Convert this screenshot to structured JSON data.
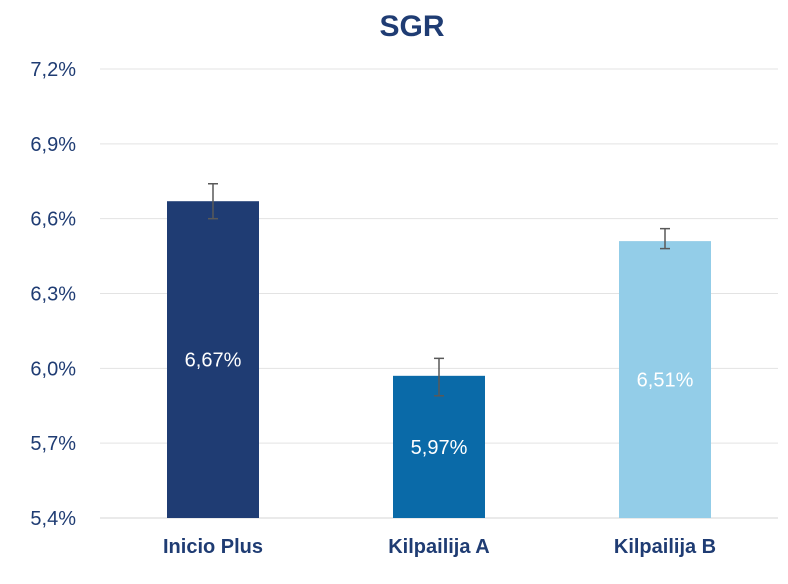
{
  "chart_data": {
    "type": "bar",
    "title": "SGR",
    "xlabel": "",
    "ylabel": "",
    "categories": [
      "Inicio Plus",
      "Kilpailija A",
      "Kilpailija B"
    ],
    "values": [
      6.67,
      5.97,
      6.51
    ],
    "data_labels": [
      "6,67%",
      "5,97%",
      "6,51%"
    ],
    "error_bars": [
      {
        "low": 6.6,
        "high": 6.74
      },
      {
        "low": 5.89,
        "high": 6.04
      },
      {
        "low": 6.48,
        "high": 6.56
      }
    ],
    "ylim": [
      5.4,
      7.2
    ],
    "yticks": [
      5.4,
      5.7,
      6.0,
      6.3,
      6.6,
      6.9,
      7.2
    ],
    "ytick_labels": [
      "5,4%",
      "5,7%",
      "6,0%",
      "6,3%",
      "6,6%",
      "6,9%",
      "7,2%"
    ],
    "grid": true,
    "legend": "none",
    "colors": {
      "bars": [
        "#1f3c73",
        "#0a6aa8",
        "#93cde8"
      ],
      "title": "#1f3c73",
      "axis_text": "#1f3c73",
      "grid": "#e3e3e3",
      "error_bar": "#595959"
    }
  }
}
